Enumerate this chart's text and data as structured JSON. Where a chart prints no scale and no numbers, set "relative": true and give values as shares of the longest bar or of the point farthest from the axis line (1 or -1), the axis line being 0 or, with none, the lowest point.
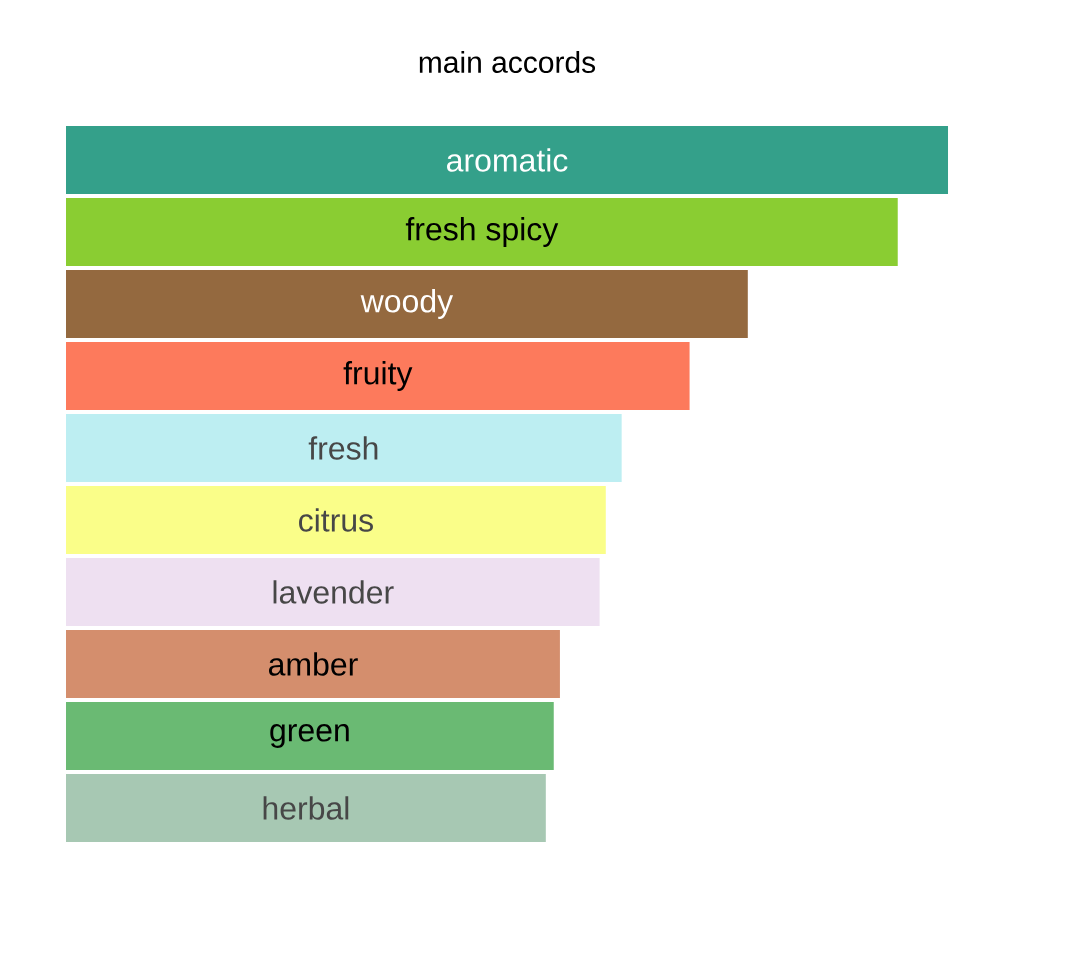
{
  "chart_data": {
    "type": "bar",
    "orientation": "horizontal",
    "relative": true,
    "title": "main accords",
    "categories": [
      "aromatic",
      "fresh spicy",
      "woody",
      "fruity",
      "fresh",
      "citrus",
      "lavender",
      "amber",
      "green",
      "herbal"
    ],
    "values": [
      1,
      0.943,
      0.773,
      0.707,
      0.63,
      0.612,
      0.605,
      0.56,
      0.553,
      0.544
    ],
    "colors": [
      "#34a08a",
      "#8acd32",
      "#94693f",
      "#fd7a5c",
      "#bdeef2",
      "#fafe89",
      "#eee0f1",
      "#d48e6d",
      "#6aba73",
      "#a7c8b3"
    ]
  }
}
